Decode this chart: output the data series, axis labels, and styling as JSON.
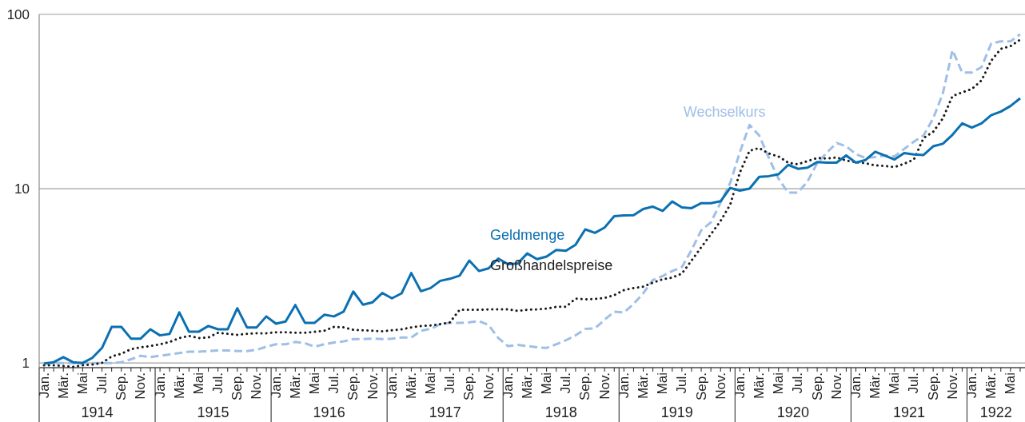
{
  "chart_data": {
    "type": "line",
    "x": [
      "1914-01",
      "1914-02",
      "1914-03",
      "1914-04",
      "1914-05",
      "1914-06",
      "1914-07",
      "1914-08",
      "1914-09",
      "1914-10",
      "1914-11",
      "1914-12",
      "1915-01",
      "1915-02",
      "1915-03",
      "1915-04",
      "1915-05",
      "1915-06",
      "1915-07",
      "1915-08",
      "1915-09",
      "1915-10",
      "1915-11",
      "1915-12",
      "1916-01",
      "1916-02",
      "1916-03",
      "1916-04",
      "1916-05",
      "1916-06",
      "1916-07",
      "1916-08",
      "1916-09",
      "1916-10",
      "1916-11",
      "1916-12",
      "1917-01",
      "1917-02",
      "1917-03",
      "1917-04",
      "1917-05",
      "1917-06",
      "1917-07",
      "1917-08",
      "1917-09",
      "1917-10",
      "1917-11",
      "1917-12",
      "1918-01",
      "1918-02",
      "1918-03",
      "1918-04",
      "1918-05",
      "1918-06",
      "1918-07",
      "1918-08",
      "1918-09",
      "1918-10",
      "1918-11",
      "1918-12",
      "1919-01",
      "1919-02",
      "1919-03",
      "1919-04",
      "1919-05",
      "1919-06",
      "1919-07",
      "1919-08",
      "1919-09",
      "1919-10",
      "1919-11",
      "1919-12",
      "1920-01",
      "1920-02",
      "1920-03",
      "1920-04",
      "1920-05",
      "1920-06",
      "1920-07",
      "1920-08",
      "1920-09",
      "1920-10",
      "1920-11",
      "1920-12",
      "1921-01",
      "1921-02",
      "1921-03",
      "1921-04",
      "1921-05",
      "1921-06",
      "1921-07",
      "1921-08",
      "1921-09",
      "1921-10",
      "1921-11",
      "1921-12",
      "1922-01",
      "1922-02",
      "1922-03",
      "1922-04",
      "1922-05",
      "1922-06"
    ],
    "series": [
      {
        "name": "Wechselkurs",
        "color": "#9fbfe6",
        "line_style": "dashed",
        "values": [
          1.0,
          1.0,
          1.0,
          1.0,
          1.0,
          1.0,
          1.0,
          1.0,
          1.01,
          1.05,
          1.1,
          1.08,
          1.1,
          1.12,
          1.14,
          1.16,
          1.16,
          1.17,
          1.18,
          1.18,
          1.17,
          1.17,
          1.19,
          1.24,
          1.28,
          1.28,
          1.32,
          1.3,
          1.24,
          1.28,
          1.31,
          1.33,
          1.37,
          1.37,
          1.38,
          1.37,
          1.38,
          1.4,
          1.4,
          1.53,
          1.57,
          1.67,
          1.7,
          1.7,
          1.71,
          1.74,
          1.65,
          1.39,
          1.25,
          1.27,
          1.25,
          1.23,
          1.22,
          1.28,
          1.35,
          1.44,
          1.57,
          1.58,
          1.77,
          1.97,
          1.95,
          2.18,
          2.51,
          2.99,
          3.15,
          3.37,
          3.55,
          4.45,
          5.77,
          6.41,
          8.32,
          10.8,
          16.2,
          23.2,
          20.2,
          15.0,
          11.4,
          9.49,
          9.49,
          11.0,
          14.0,
          16.1,
          18.3,
          17.5,
          15.8,
          15.0,
          15.2,
          15.5,
          15.3,
          16.9,
          18.6,
          20.2,
          25.3,
          35.2,
          62.3,
          46.4,
          46.4,
          49.8,
          68.0,
          70.0,
          70.0,
          76.8
        ]
      },
      {
        "name": "Großhandelspreise",
        "color": "#1a1a1a",
        "line_style": "dotted",
        "values": [
          0.97,
          0.97,
          0.96,
          0.95,
          0.97,
          0.98,
          1.0,
          1.09,
          1.13,
          1.2,
          1.23,
          1.25,
          1.28,
          1.32,
          1.39,
          1.43,
          1.39,
          1.4,
          1.49,
          1.47,
          1.45,
          1.47,
          1.48,
          1.48,
          1.5,
          1.5,
          1.49,
          1.49,
          1.51,
          1.53,
          1.61,
          1.6,
          1.55,
          1.54,
          1.53,
          1.52,
          1.54,
          1.56,
          1.6,
          1.63,
          1.64,
          1.67,
          1.71,
          2.02,
          2.02,
          2.02,
          2.03,
          2.03,
          2.03,
          1.99,
          2.02,
          2.03,
          2.05,
          2.1,
          2.1,
          2.34,
          2.32,
          2.33,
          2.36,
          2.45,
          2.62,
          2.69,
          2.74,
          2.89,
          3.02,
          3.09,
          3.26,
          3.87,
          4.61,
          5.48,
          6.52,
          8.1,
          12.4,
          16.5,
          17.1,
          15.9,
          15.3,
          14.1,
          13.8,
          14.4,
          15.0,
          14.9,
          15.1,
          14.5,
          14.2,
          14.0,
          13.6,
          13.5,
          13.3,
          13.9,
          14.7,
          19.5,
          21.2,
          25.3,
          34.0,
          35.7,
          37.3,
          41.8,
          54.2,
          63.4,
          65.7,
          71.6
        ]
      },
      {
        "name": "Geldmenge",
        "color": "#0b70b2",
        "line_style": "solid",
        "values": [
          0.99,
          1.01,
          1.08,
          1.01,
          1.0,
          1.07,
          1.22,
          1.61,
          1.61,
          1.38,
          1.38,
          1.56,
          1.44,
          1.47,
          1.95,
          1.51,
          1.51,
          1.63,
          1.56,
          1.56,
          2.06,
          1.6,
          1.6,
          1.85,
          1.68,
          1.73,
          2.15,
          1.7,
          1.7,
          1.89,
          1.85,
          1.97,
          2.57,
          2.16,
          2.23,
          2.52,
          2.35,
          2.51,
          3.28,
          2.58,
          2.69,
          2.96,
          3.04,
          3.17,
          3.87,
          3.37,
          3.49,
          3.97,
          3.69,
          3.72,
          4.25,
          3.94,
          4.08,
          4.45,
          4.4,
          4.77,
          5.84,
          5.58,
          5.98,
          6.95,
          7.02,
          7.04,
          7.65,
          7.89,
          7.45,
          8.44,
          7.81,
          7.73,
          8.26,
          8.26,
          8.47,
          10.1,
          9.75,
          10.0,
          11.7,
          11.8,
          12.1,
          13.7,
          13.0,
          13.2,
          14.2,
          14.1,
          14.1,
          15.5,
          14.1,
          14.6,
          16.3,
          15.5,
          14.7,
          16.0,
          15.7,
          15.6,
          17.5,
          18.1,
          20.4,
          23.7,
          22.4,
          23.7,
          26.4,
          27.7,
          29.8,
          33.0
        ]
      }
    ],
    "log": "y",
    "ylim": [
      0.94,
      100
    ],
    "yticks": [
      1,
      10,
      100
    ],
    "grid": "y",
    "xlim": [
      "1913-12-16",
      "1922-06-16"
    ],
    "xticks": [
      {
        "value": "1914-01",
        "label": "Jan."
      },
      {
        "value": "1914-02",
        "label": null
      },
      {
        "value": "1914-03",
        "label": "Mär."
      },
      {
        "value": "1914-04",
        "label": null
      },
      {
        "value": "1914-05",
        "label": "Mai"
      },
      {
        "value": "1914-06",
        "label": null
      },
      {
        "value": "1914-07",
        "label": "Jul."
      },
      {
        "value": "1914-08",
        "label": null
      },
      {
        "value": "1914-09",
        "label": "Sep."
      },
      {
        "value": "1914-10",
        "label": null
      },
      {
        "value": "1914-11",
        "label": "Nov."
      },
      {
        "value": "1914-12",
        "label": null
      },
      {
        "value": "1915-01",
        "label": "Jan."
      },
      {
        "value": "1915-02",
        "label": null
      },
      {
        "value": "1915-03",
        "label": "Mär."
      },
      {
        "value": "1915-04",
        "label": null
      },
      {
        "value": "1915-05",
        "label": "Mai"
      },
      {
        "value": "1915-06",
        "label": null
      },
      {
        "value": "1915-07",
        "label": "Jul."
      },
      {
        "value": "1915-08",
        "label": null
      },
      {
        "value": "1915-09",
        "label": "Sep."
      },
      {
        "value": "1915-10",
        "label": null
      },
      {
        "value": "1915-11",
        "label": "Nov."
      },
      {
        "value": "1915-12",
        "label": null
      },
      {
        "value": "1916-01",
        "label": "Jan."
      },
      {
        "value": "1916-02",
        "label": null
      },
      {
        "value": "1916-03",
        "label": "Mär."
      },
      {
        "value": "1916-04",
        "label": null
      },
      {
        "value": "1916-05",
        "label": "Mai"
      },
      {
        "value": "1916-06",
        "label": null
      },
      {
        "value": "1916-07",
        "label": "Jul."
      },
      {
        "value": "1916-08",
        "label": null
      },
      {
        "value": "1916-09",
        "label": "Sep."
      },
      {
        "value": "1916-10",
        "label": null
      },
      {
        "value": "1916-11",
        "label": "Nov."
      },
      {
        "value": "1916-12",
        "label": null
      },
      {
        "value": "1917-01",
        "label": "Jan."
      },
      {
        "value": "1917-02",
        "label": null
      },
      {
        "value": "1917-03",
        "label": "Mär."
      },
      {
        "value": "1917-04",
        "label": null
      },
      {
        "value": "1917-05",
        "label": "Mai"
      },
      {
        "value": "1917-06",
        "label": null
      },
      {
        "value": "1917-07",
        "label": "Jul."
      },
      {
        "value": "1917-08",
        "label": null
      },
      {
        "value": "1917-09",
        "label": "Sep."
      },
      {
        "value": "1917-10",
        "label": null
      },
      {
        "value": "1917-11",
        "label": "Nov."
      },
      {
        "value": "1917-12",
        "label": null
      },
      {
        "value": "1918-01",
        "label": "Jan."
      },
      {
        "value": "1918-02",
        "label": null
      },
      {
        "value": "1918-03",
        "label": "Mär."
      },
      {
        "value": "1918-04",
        "label": null
      },
      {
        "value": "1918-05",
        "label": "Mai"
      },
      {
        "value": "1918-06",
        "label": null
      },
      {
        "value": "1918-07",
        "label": "Jul."
      },
      {
        "value": "1918-08",
        "label": null
      },
      {
        "value": "1918-09",
        "label": "Sep."
      },
      {
        "value": "1918-10",
        "label": null
      },
      {
        "value": "1918-11",
        "label": "Nov."
      },
      {
        "value": "1918-12",
        "label": null
      },
      {
        "value": "1919-01",
        "label": "Jan."
      },
      {
        "value": "1919-02",
        "label": null
      },
      {
        "value": "1919-03",
        "label": "Mär."
      },
      {
        "value": "1919-04",
        "label": null
      },
      {
        "value": "1919-05",
        "label": "Mai"
      },
      {
        "value": "1919-06",
        "label": null
      },
      {
        "value": "1919-07",
        "label": "Jul."
      },
      {
        "value": "1919-08",
        "label": null
      },
      {
        "value": "1919-09",
        "label": "Sep."
      },
      {
        "value": "1919-10",
        "label": null
      },
      {
        "value": "1919-11",
        "label": "Nov."
      },
      {
        "value": "1919-12",
        "label": null
      },
      {
        "value": "1920-01",
        "label": "Jan."
      },
      {
        "value": "1920-02",
        "label": null
      },
      {
        "value": "1920-03",
        "label": "Mär."
      },
      {
        "value": "1920-04",
        "label": null
      },
      {
        "value": "1920-05",
        "label": "Mai"
      },
      {
        "value": "1920-06",
        "label": null
      },
      {
        "value": "1920-07",
        "label": "Jul."
      },
      {
        "value": "1920-08",
        "label": null
      },
      {
        "value": "1920-09",
        "label": "Sep."
      },
      {
        "value": "1920-10",
        "label": null
      },
      {
        "value": "1920-11",
        "label": "Nov."
      },
      {
        "value": "1920-12",
        "label": null
      },
      {
        "value": "1921-01",
        "label": "Jan."
      },
      {
        "value": "1921-02",
        "label": null
      },
      {
        "value": "1921-03",
        "label": "Mär."
      },
      {
        "value": "1921-04",
        "label": null
      },
      {
        "value": "1921-05",
        "label": "Mai"
      },
      {
        "value": "1921-06",
        "label": null
      },
      {
        "value": "1921-07",
        "label": "Jul."
      },
      {
        "value": "1921-08",
        "label": null
      },
      {
        "value": "1921-09",
        "label": "Sep."
      },
      {
        "value": "1921-10",
        "label": null
      },
      {
        "value": "1921-11",
        "label": "Nov."
      },
      {
        "value": "1921-12",
        "label": null
      },
      {
        "value": "1922-01",
        "label": "Jan."
      },
      {
        "value": "1922-02",
        "label": null
      },
      {
        "value": "1922-03",
        "label": "Mär."
      },
      {
        "value": "1922-04",
        "label": null
      },
      {
        "value": "1922-05",
        "label": "Mai"
      },
      {
        "value": "1922-06",
        "label": null
      }
    ],
    "x2lim": [
      "1913-12-16",
      "1922-06-16"
    ],
    "x2ticks": [
      {
        "value": "1914-06-16",
        "label": "1914"
      },
      {
        "value": "1915-06-16",
        "label": "1915"
      },
      {
        "value": "1916-06-16",
        "label": "1916"
      },
      {
        "value": "1917-06-16",
        "label": "1917"
      },
      {
        "value": "1918-06-16",
        "label": "1918"
      },
      {
        "value": "1919-06-16",
        "label": "1919"
      },
      {
        "value": "1920-06-16",
        "label": "1920"
      },
      {
        "value": "1921-06-16",
        "label": "1921"
      },
      {
        "value": "1922-03-16",
        "label": "1922"
      }
    ]
  }
}
